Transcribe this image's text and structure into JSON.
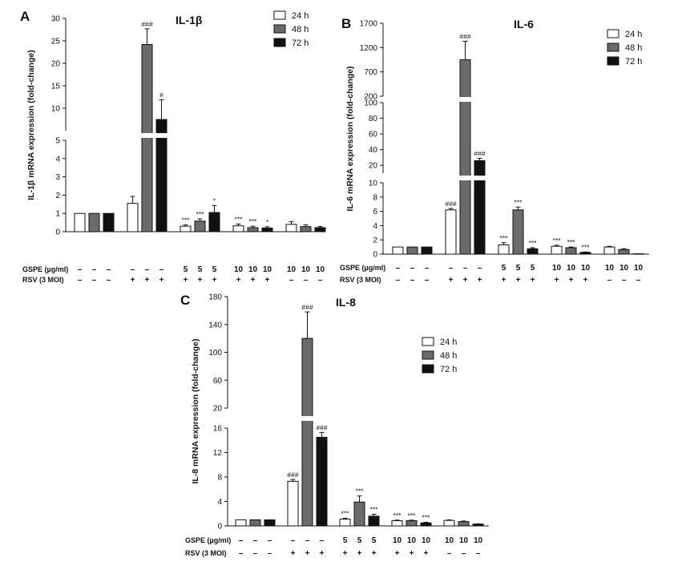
{
  "legend": [
    {
      "label": "24 h",
      "color": "#ffffff"
    },
    {
      "label": "48 h",
      "color": "#6b6b6b"
    },
    {
      "label": "72 h",
      "color": "#111111"
    }
  ],
  "condition_labels": {
    "gspe": "GSPE (µg/ml)",
    "rsv": "RSV (3 MOI)"
  },
  "chart_data": [
    {
      "type": "bar",
      "panel": "A",
      "title": "IL-1β",
      "ylabel": "IL-1β mRNA expression (fold-change)",
      "ylim": [
        0,
        30
      ],
      "broken_axis": {
        "lower": [
          0,
          5
        ],
        "upper": [
          5,
          30
        ]
      },
      "yticks_lower": [
        0,
        1,
        2,
        3,
        4,
        5
      ],
      "yticks_upper": [
        10,
        15,
        20,
        25,
        30
      ],
      "groups": [
        {
          "gspe": [
            "–",
            "–",
            "–"
          ],
          "rsv": [
            "–",
            "–",
            "–"
          ]
        },
        {
          "gspe": [
            "–",
            "–",
            "–"
          ],
          "rsv": [
            "+",
            "+",
            "+"
          ]
        },
        {
          "gspe": [
            "5",
            "5",
            "5"
          ],
          "rsv": [
            "+",
            "+",
            "+"
          ]
        },
        {
          "gspe": [
            "10",
            "10",
            "10"
          ],
          "rsv": [
            "+",
            "+",
            "+"
          ]
        },
        {
          "gspe": [
            "10",
            "10",
            "10"
          ],
          "rsv": [
            "–",
            "–",
            "–"
          ]
        }
      ],
      "series": [
        {
          "name": "24 h",
          "values": [
            1.0,
            1.55,
            0.3,
            0.32,
            0.4
          ],
          "errors": [
            0.0,
            0.38,
            0.07,
            0.1,
            0.15
          ],
          "sig": [
            "",
            "",
            "***",
            "***",
            ""
          ]
        },
        {
          "name": "48 h",
          "values": [
            1.0,
            24.2,
            0.58,
            0.22,
            0.28
          ],
          "errors": [
            0.0,
            3.5,
            0.12,
            0.08,
            0.1
          ],
          "sig": [
            "",
            "###",
            "***",
            "***",
            ""
          ]
        },
        {
          "name": "72 h",
          "values": [
            1.0,
            7.5,
            1.05,
            0.2,
            0.22
          ],
          "errors": [
            0.0,
            4.4,
            0.38,
            0.07,
            0.06
          ],
          "sig": [
            "",
            "#",
            "*",
            "*",
            ""
          ]
        }
      ]
    },
    {
      "type": "bar",
      "panel": "B",
      "title": "IL-6",
      "ylabel": "IL-6 mRNA expression (fold-change)",
      "ylim": [
        0,
        1700
      ],
      "broken_axis": {
        "lower": [
          0,
          10
        ],
        "middle": [
          10,
          100
        ],
        "upper": [
          200,
          1700
        ]
      },
      "yticks_lower": [
        0,
        2,
        4,
        6,
        8,
        10
      ],
      "yticks_middle": [
        20,
        40,
        60,
        80,
        100
      ],
      "yticks_upper": [
        200,
        700,
        1200,
        1700
      ],
      "groups": [
        {
          "gspe": [
            "–",
            "–",
            "–"
          ],
          "rsv": [
            "–",
            "–",
            "–"
          ]
        },
        {
          "gspe": [
            "–",
            "–",
            "–"
          ],
          "rsv": [
            "+",
            "+",
            "+"
          ]
        },
        {
          "gspe": [
            "5",
            "5",
            "5"
          ],
          "rsv": [
            "+",
            "+",
            "+"
          ]
        },
        {
          "gspe": [
            "10",
            "10",
            "10"
          ],
          "rsv": [
            "+",
            "+",
            "+"
          ]
        },
        {
          "gspe": [
            "10",
            "10",
            "10"
          ],
          "rsv": [
            "–",
            "–",
            "–"
          ]
        }
      ],
      "series": [
        {
          "name": "24 h",
          "values": [
            1.0,
            6.2,
            1.3,
            1.1,
            1.0
          ],
          "errors": [
            0.0,
            0.2,
            0.3,
            0.15,
            0.1
          ],
          "sig": [
            "",
            "###",
            "***",
            "***",
            ""
          ]
        },
        {
          "name": "48 h",
          "values": [
            1.0,
            950,
            6.2,
            0.9,
            0.65
          ],
          "errors": [
            0.0,
            380,
            0.4,
            0.1,
            0.1
          ],
          "sig": [
            "",
            "###",
            "***",
            "***",
            ""
          ]
        },
        {
          "name": "72 h",
          "values": [
            1.0,
            26,
            0.75,
            0.25,
            0.05
          ],
          "errors": [
            0.0,
            3,
            0.15,
            0.05,
            0.0
          ],
          "sig": [
            "",
            "###",
            "***",
            "***",
            ""
          ]
        }
      ]
    },
    {
      "type": "bar",
      "panel": "C",
      "title": "IL-8",
      "ylabel": "IL-8 mRNA expression (fold-change)",
      "ylim": [
        0,
        180
      ],
      "broken_axis": {
        "lower": [
          0,
          16
        ],
        "upper": [
          20,
          180
        ]
      },
      "yticks_lower": [
        0,
        4,
        8,
        12,
        16
      ],
      "yticks_upper": [
        20,
        60,
        100,
        140,
        180
      ],
      "groups": [
        {
          "gspe": [
            "–",
            "–",
            "–"
          ],
          "rsv": [
            "–",
            "–",
            "–"
          ]
        },
        {
          "gspe": [
            "–",
            "–",
            "–"
          ],
          "rsv": [
            "+",
            "+",
            "+"
          ]
        },
        {
          "gspe": [
            "5",
            "5",
            "5"
          ],
          "rsv": [
            "+",
            "+",
            "+"
          ]
        },
        {
          "gspe": [
            "10",
            "10",
            "10"
          ],
          "rsv": [
            "+",
            "+",
            "+"
          ]
        },
        {
          "gspe": [
            "10",
            "10",
            "10"
          ],
          "rsv": [
            "–",
            "–",
            "–"
          ]
        }
      ],
      "series": [
        {
          "name": "24 h",
          "values": [
            1.0,
            7.3,
            1.1,
            0.85,
            0.9
          ],
          "errors": [
            0.0,
            0.3,
            0.15,
            0.1,
            0.1
          ],
          "sig": [
            "",
            "###",
            "***",
            "***",
            ""
          ]
        },
        {
          "name": "48 h",
          "values": [
            1.0,
            120,
            3.9,
            0.85,
            0.7
          ],
          "errors": [
            0.0,
            38,
            1.0,
            0.1,
            0.1
          ],
          "sig": [
            "",
            "###",
            "***",
            "***",
            ""
          ]
        },
        {
          "name": "72 h",
          "values": [
            1.0,
            14.5,
            1.6,
            0.5,
            0.3
          ],
          "errors": [
            0.0,
            0.8,
            0.3,
            0.1,
            0.05
          ],
          "sig": [
            "",
            "###",
            "***",
            "***",
            ""
          ]
        }
      ]
    }
  ]
}
